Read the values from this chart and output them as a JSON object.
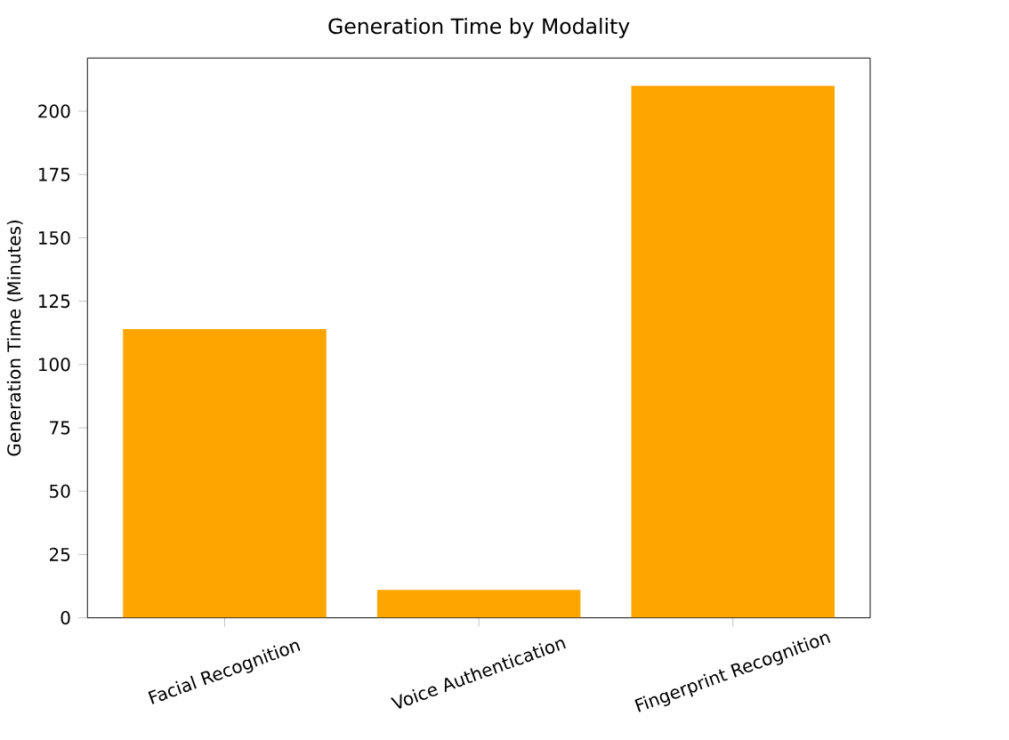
{
  "chart_data": {
    "type": "bar",
    "title": "Generation Time by Modality",
    "ylabel": "Generation Time (Minutes)",
    "categories": [
      "Facial Recognition",
      "Voice Authentication",
      "Fingerprint Recognition"
    ],
    "values": [
      114,
      11,
      210
    ],
    "color": "#ffa500",
    "ylim": [
      0,
      221
    ],
    "yticks": [
      0,
      25,
      50,
      75,
      100,
      125,
      150,
      175,
      200
    ]
  }
}
